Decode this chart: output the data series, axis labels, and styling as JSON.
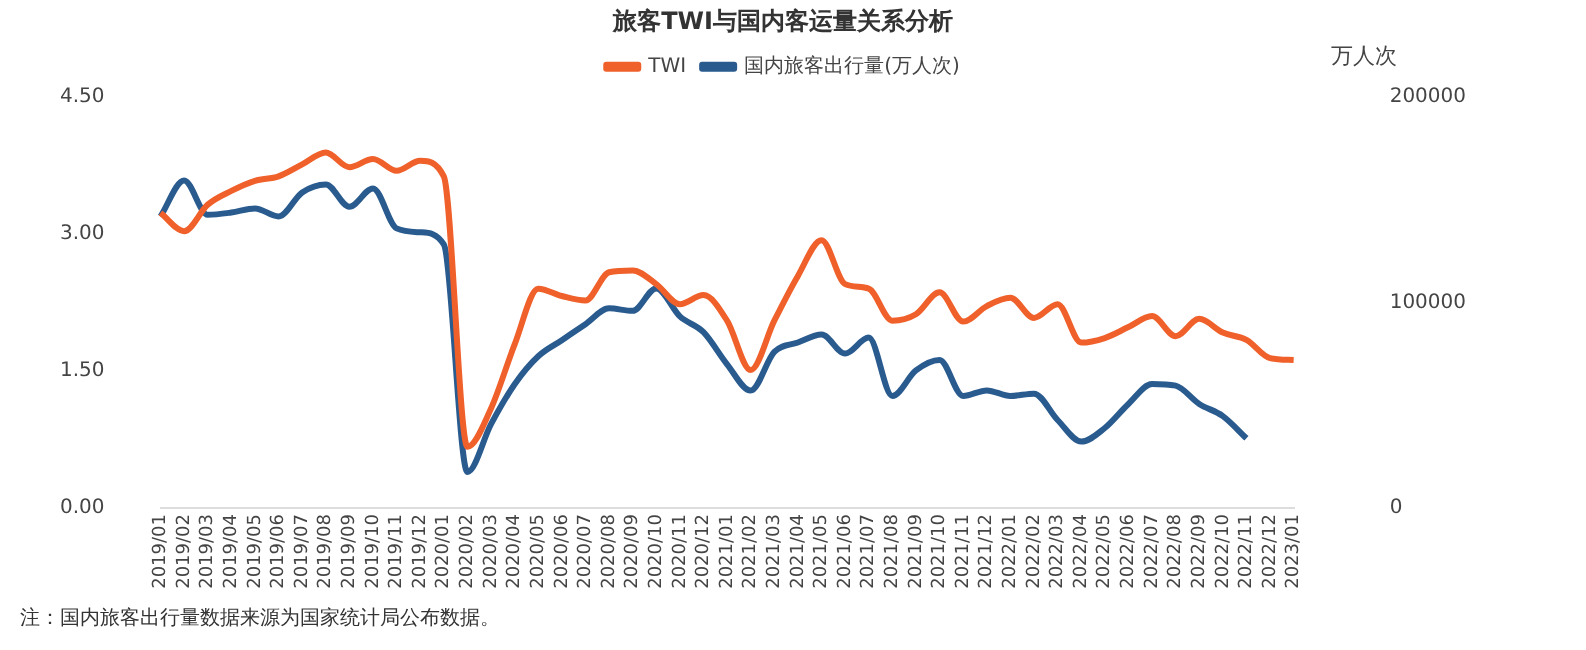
{
  "chart_data": {
    "type": "line",
    "title": "旅客TWI与国内客运量关系分析",
    "y2label": "万人次",
    "categories": [
      "2019/01",
      "2019/02",
      "2019/03",
      "2019/04",
      "2019/05",
      "2019/06",
      "2019/07",
      "2019/08",
      "2019/09",
      "2019/10",
      "2019/11",
      "2019/12",
      "2020/01",
      "2020/02",
      "2020/03",
      "2020/04",
      "2020/05",
      "2020/06",
      "2020/07",
      "2020/08",
      "2020/09",
      "2020/10",
      "2020/11",
      "2020/12",
      "2021/01",
      "2021/02",
      "2021/03",
      "2021/04",
      "2021/05",
      "2021/06",
      "2021/07",
      "2021/08",
      "2021/09",
      "2021/10",
      "2021/11",
      "2021/12",
      "2022/01",
      "2022/02",
      "2022/03",
      "2022/04",
      "2022/05",
      "2022/06",
      "2022/07",
      "2022/08",
      "2022/09",
      "2022/10",
      "2022/11",
      "2022/12",
      "2023/01"
    ],
    "series": [
      {
        "name": "TWI",
        "color": "#f0602a",
        "values": [
          3.23,
          3.03,
          3.32,
          3.47,
          3.58,
          3.63,
          3.76,
          3.89,
          3.73,
          3.82,
          3.69,
          3.8,
          3.63,
          0.67,
          1.09,
          1.79,
          2.4,
          2.32,
          2.27,
          2.58,
          2.6,
          2.45,
          2.23,
          2.33,
          2.05,
          1.51,
          2.05,
          2.54,
          2.93,
          2.45,
          2.4,
          2.05,
          2.12,
          2.36,
          2.04,
          2.21,
          2.3,
          2.08,
          2.23,
          1.81,
          1.86,
          1.98,
          2.1,
          1.88,
          2.07,
          1.92,
          1.84,
          1.64,
          1.62
        ]
      },
      {
        "name": "国内旅客出行量(万人次)",
        "color": "#2a5b8f",
        "axis": "y2",
        "values": [
          141800,
          159300,
          142600,
          143700,
          145700,
          141800,
          153500,
          157400,
          146500,
          155400,
          136000,
          134100,
          128200,
          17500,
          40800,
          60200,
          73800,
          81600,
          89400,
          97100,
          95900,
          106800,
          93200,
          85500,
          69900,
          57100,
          75900,
          80500,
          84400,
          75100,
          82900,
          54500,
          66900,
          72000,
          54500,
          57200,
          54500,
          55600,
          42800,
          32300,
          38900,
          50600,
          60300,
          59500,
          50600,
          44700,
          33900,
          null,
          null
        ]
      }
    ],
    "ylim": [
      0,
      4.5
    ],
    "yticks": [
      {
        "value": 0,
        "label": "0.00"
      },
      {
        "value": 1.5,
        "label": "1.50"
      },
      {
        "value": 3,
        "label": "3.00"
      },
      {
        "value": 4.5,
        "label": "4.50"
      }
    ],
    "y2lim": [
      0,
      200000
    ],
    "y2ticks": [
      0,
      100000,
      200000
    ],
    "grid": false,
    "legend": "top",
    "marker": "none",
    "line_style": "solid",
    "annotations": [
      "注：国内旅客出行量数据来源为国家统计局公布数据。"
    ]
  }
}
